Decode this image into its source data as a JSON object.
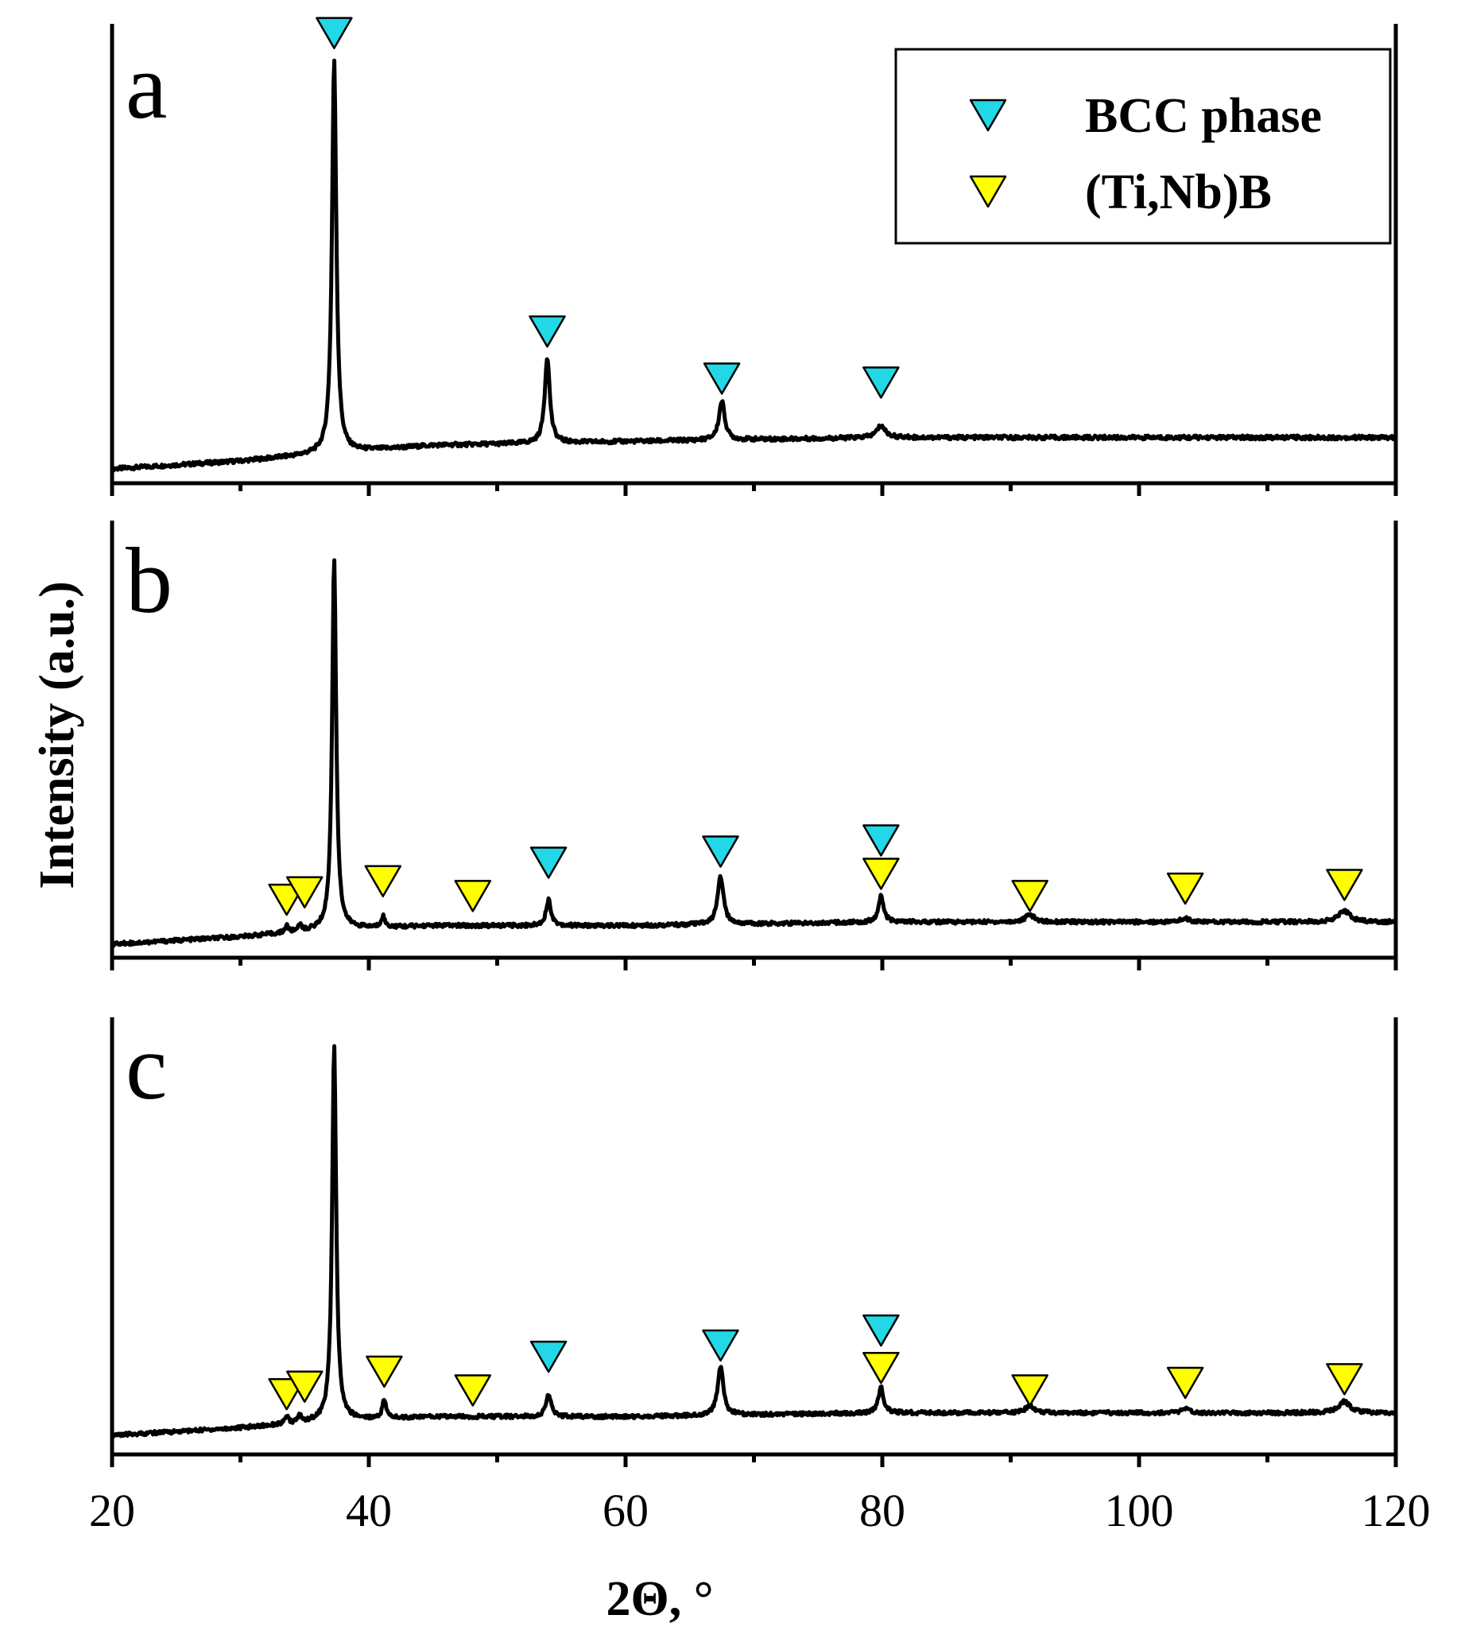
{
  "colors": {
    "bcc": "#22D8E6",
    "tinbb": "#FFFF00",
    "line": "#000000"
  },
  "chart_data": {
    "type": "line",
    "xlabel": "2Θ, °",
    "ylabel": "Intensity (a.u.)",
    "xlim": [
      20,
      120
    ],
    "xticks": [
      20,
      40,
      60,
      80,
      100,
      120
    ],
    "ylim": [
      0,
      1.15
    ],
    "grid": false,
    "legend": {
      "placement": "top-right",
      "entries": [
        {
          "marker": "bcc",
          "label": "BCC phase"
        },
        {
          "marker": "tinbb",
          "label": "(Ti,Nb)B"
        }
      ]
    },
    "series": [
      {
        "name": "a",
        "baseline": [
          [
            20,
            0.0
          ],
          [
            30,
            0.02
          ],
          [
            37,
            0.04
          ],
          [
            45,
            0.06
          ],
          [
            60,
            0.07
          ],
          [
            80,
            0.08
          ],
          [
            120,
            0.08
          ]
        ],
        "peaks": [
          {
            "x": 37.3,
            "h": 1.0,
            "w": 0.3
          },
          {
            "x": 53.9,
            "h": 0.22,
            "w": 0.35
          },
          {
            "x": 67.5,
            "h": 0.1,
            "w": 0.4
          },
          {
            "x": 79.9,
            "h": 0.03,
            "w": 0.6
          }
        ],
        "markers": [
          {
            "phase": "bcc",
            "x": 37.3,
            "y": 1.11
          },
          {
            "phase": "bcc",
            "x": 53.9,
            "y": 0.35
          },
          {
            "phase": "bcc",
            "x": 67.5,
            "y": 0.23
          },
          {
            "phase": "bcc",
            "x": 79.9,
            "y": 0.22
          }
        ]
      },
      {
        "name": "b",
        "baseline": [
          [
            20,
            0.0
          ],
          [
            30,
            0.02
          ],
          [
            37,
            0.04
          ],
          [
            45,
            0.05
          ],
          [
            60,
            0.05
          ],
          [
            80,
            0.06
          ],
          [
            120,
            0.06
          ]
        ],
        "peaks": [
          {
            "x": 33.6,
            "h": 0.02,
            "w": 0.2
          },
          {
            "x": 34.6,
            "h": 0.02,
            "w": 0.2
          },
          {
            "x": 37.3,
            "h": 1.0,
            "w": 0.28
          },
          {
            "x": 41.1,
            "h": 0.03,
            "w": 0.25
          },
          {
            "x": 54.0,
            "h": 0.07,
            "w": 0.35
          },
          {
            "x": 67.4,
            "h": 0.13,
            "w": 0.4
          },
          {
            "x": 79.9,
            "h": 0.07,
            "w": 0.35
          },
          {
            "x": 91.5,
            "h": 0.02,
            "w": 0.6
          },
          {
            "x": 103.6,
            "h": 0.01,
            "w": 0.6
          },
          {
            "x": 116.0,
            "h": 0.03,
            "w": 0.8
          }
        ],
        "markers": [
          {
            "phase": "tinbb",
            "x": 33.6,
            "y": 0.12
          },
          {
            "phase": "tinbb",
            "x": 35.0,
            "y": 0.14
          },
          {
            "phase": "tinbb",
            "x": 41.1,
            "y": 0.17
          },
          {
            "phase": "tinbb",
            "x": 48.1,
            "y": 0.13
          },
          {
            "phase": "bcc",
            "x": 54.0,
            "y": 0.22
          },
          {
            "phase": "bcc",
            "x": 67.4,
            "y": 0.25
          },
          {
            "phase": "bcc",
            "x": 79.9,
            "y": 0.28
          },
          {
            "phase": "tinbb",
            "x": 79.9,
            "y": 0.19
          },
          {
            "phase": "tinbb",
            "x": 91.5,
            "y": 0.13
          },
          {
            "phase": "tinbb",
            "x": 103.6,
            "y": 0.15
          },
          {
            "phase": "tinbb",
            "x": 116.0,
            "y": 0.16
          }
        ]
      },
      {
        "name": "c",
        "baseline": [
          [
            20,
            0.0
          ],
          [
            30,
            0.02
          ],
          [
            37,
            0.04
          ],
          [
            45,
            0.05
          ],
          [
            60,
            0.05
          ],
          [
            80,
            0.06
          ],
          [
            120,
            0.06
          ]
        ],
        "peaks": [
          {
            "x": 33.6,
            "h": 0.02,
            "w": 0.2
          },
          {
            "x": 34.6,
            "h": 0.02,
            "w": 0.2
          },
          {
            "x": 37.3,
            "h": 1.0,
            "w": 0.28
          },
          {
            "x": 41.2,
            "h": 0.05,
            "w": 0.25
          },
          {
            "x": 54.0,
            "h": 0.06,
            "w": 0.35
          },
          {
            "x": 67.4,
            "h": 0.13,
            "w": 0.4
          },
          {
            "x": 79.9,
            "h": 0.07,
            "w": 0.35
          },
          {
            "x": 91.5,
            "h": 0.02,
            "w": 0.6
          },
          {
            "x": 103.6,
            "h": 0.01,
            "w": 0.6
          },
          {
            "x": 116.0,
            "h": 0.03,
            "w": 0.8
          }
        ],
        "markers": [
          {
            "phase": "tinbb",
            "x": 33.6,
            "y": 0.11
          },
          {
            "phase": "tinbb",
            "x": 35.0,
            "y": 0.13
          },
          {
            "phase": "tinbb",
            "x": 41.2,
            "y": 0.17
          },
          {
            "phase": "tinbb",
            "x": 48.1,
            "y": 0.12
          },
          {
            "phase": "bcc",
            "x": 54.0,
            "y": 0.21
          },
          {
            "phase": "bcc",
            "x": 67.4,
            "y": 0.24
          },
          {
            "phase": "bcc",
            "x": 79.9,
            "y": 0.28
          },
          {
            "phase": "tinbb",
            "x": 79.9,
            "y": 0.18
          },
          {
            "phase": "tinbb",
            "x": 91.5,
            "y": 0.12
          },
          {
            "phase": "tinbb",
            "x": 103.6,
            "y": 0.14
          },
          {
            "phase": "tinbb",
            "x": 116.0,
            "y": 0.15
          }
        ]
      }
    ]
  }
}
